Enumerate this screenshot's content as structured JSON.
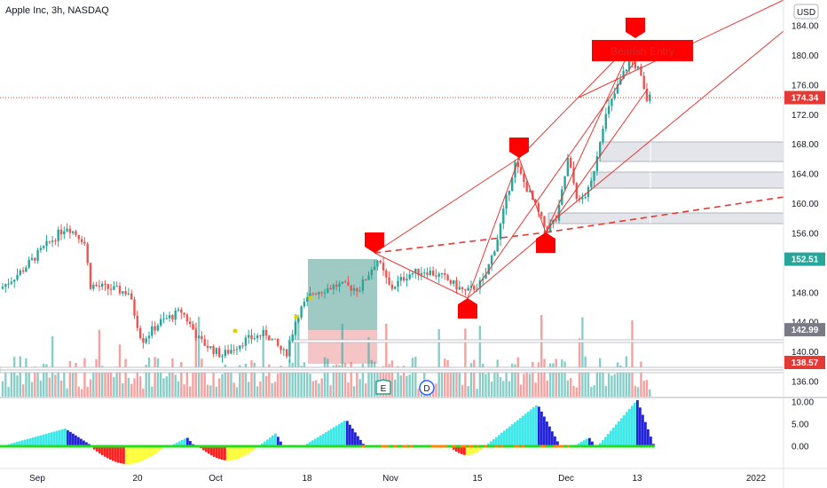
{
  "header": {
    "symbol_title": "Apple Inc, 3h, NASDAQ",
    "currency_badge": "USD"
  },
  "price_axis": {
    "ticks": [
      "184.00",
      "180.00",
      "176.00",
      "172.00",
      "168.00",
      "164.00",
      "160.00",
      "156.00",
      "148.00",
      "144.00",
      "140.00",
      "136.00"
    ],
    "tick_values": [
      184,
      180,
      176,
      172,
      168,
      164,
      160,
      156,
      148,
      144,
      140,
      136
    ],
    "ylim": [
      134.5,
      186
    ]
  },
  "price_labels": {
    "current": {
      "text": "174.34",
      "value": 174.34,
      "color": "#e53935"
    },
    "level_a": {
      "text": "152.51",
      "value": 152.51,
      "color": "#26a69a"
    },
    "level_b": {
      "text": "142.99",
      "value": 142.99,
      "color": "#787b86"
    },
    "level_c": {
      "text": "138.57",
      "value": 138.57,
      "color": "#e53935"
    }
  },
  "oscillator_axis": {
    "ticks": [
      "10.00",
      "5.00",
      "0.00"
    ],
    "tick_values": [
      10,
      5,
      0
    ],
    "ylim": [
      -3.5,
      10.5
    ]
  },
  "time_axis": {
    "labels": [
      "Sep",
      "20",
      "Oct",
      "18",
      "Nov",
      "15",
      "Dec",
      "13",
      "2022"
    ],
    "label_x": [
      "Sep",
      "20",
      "Oct",
      "18",
      "Nov",
      "15",
      "Dec",
      "13",
      "2022"
    ]
  },
  "annotations": {
    "bearish_entry_label": "Bearish Entry",
    "earnings_marker": "E",
    "dividend_marker": "D"
  },
  "colors": {
    "up": "#26a69a",
    "down": "#ef5350",
    "pattern_line": "#e53935",
    "marker_red": "#ff0000",
    "osc_cyan": "#3ce8e8",
    "osc_blue": "#2323d9",
    "osc_red": "#ff2020",
    "osc_yellow": "#ffff33",
    "osc_green": "#22dd22",
    "osc_orange": "#ff8800",
    "zone_green": "#7fb8b0",
    "zone_red": "#f2b0b0"
  },
  "chart_data": [
    {
      "type": "candlestick",
      "title": "Apple Inc, 3h, NASDAQ",
      "ylim": [
        134.5,
        186
      ],
      "x_labels": [
        "Sep",
        "20",
        "Oct",
        "18",
        "Nov",
        "15",
        "Dec",
        "13",
        "2022"
      ],
      "approx_closes_path": [
        {
          "date": "Sep (start)",
          "value": 148.5
        },
        {
          "date": "early Sep",
          "value": 153
        },
        {
          "date": "mid Sep",
          "value": 157
        },
        {
          "date": "Sep 16",
          "value": 150
        },
        {
          "date": "Sep 20",
          "value": 143
        },
        {
          "date": "late Sep",
          "value": 146
        },
        {
          "date": "Oct 4",
          "value": 139.5
        },
        {
          "date": "Oct 12",
          "value": 142
        },
        {
          "date": "Oct 18",
          "value": 146
        },
        {
          "date": "Oct 25",
          "value": 148.5
        },
        {
          "date": "Oct 28",
          "value": 152.5
        },
        {
          "date": "Nov 4",
          "value": 150.5
        },
        {
          "date": "Nov 10",
          "value": 148
        },
        {
          "date": "Nov 15",
          "value": 150
        },
        {
          "date": "Nov 19",
          "value": 160
        },
        {
          "date": "Nov 22",
          "value": 165.5
        },
        {
          "date": "Nov 26",
          "value": 157
        },
        {
          "date": "Dec 1",
          "value": 166
        },
        {
          "date": "Dec 3",
          "value": 160
        },
        {
          "date": "Dec 8",
          "value": 171
        },
        {
          "date": "Dec 13",
          "value": 179.5
        },
        {
          "date": "Dec 15",
          "value": 174.34
        }
      ],
      "last_price": 174.34
    },
    {
      "type": "bar",
      "title": "",
      "series": [
        {
          "name": "",
          "color": "#3ce8e8"
        }
      ],
      "ylim": [
        -3.5,
        10.5
      ],
      "y_ticks": [
        10,
        5,
        0
      ]
    }
  ]
}
